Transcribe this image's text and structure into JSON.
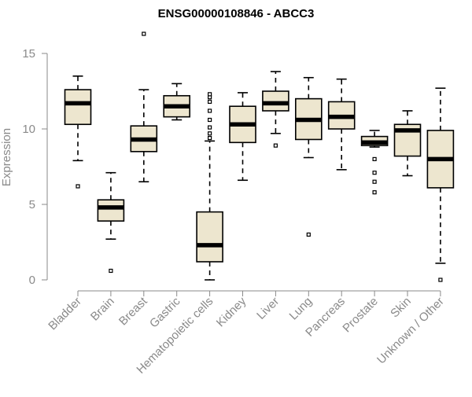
{
  "chart_data": {
    "type": "box",
    "title": "ENSG00000108846 - ABCC3",
    "xlabel": "",
    "ylabel": "Expression",
    "ylim": [
      0,
      15
    ],
    "yticks": [
      0,
      5,
      10,
      15
    ],
    "grid": false,
    "legend": "none",
    "box_fill": "#ede6cf",
    "stroke_color": "#000000",
    "axis_color": "#8a8a8a",
    "categories": [
      "Bladder",
      "Brain",
      "Breast",
      "Gastric",
      "Hematopoietic cells",
      "Kidney",
      "Liver",
      "Lung",
      "Pancreas",
      "Prostate",
      "Skin",
      "Unknown / Other"
    ],
    "boxes": [
      {
        "category": "Bladder",
        "min": 7.9,
        "q1": 10.3,
        "median": 11.7,
        "q3": 12.6,
        "max": 13.5,
        "outliers": [
          6.2
        ]
      },
      {
        "category": "Brain",
        "min": 2.7,
        "q1": 3.9,
        "median": 4.8,
        "q3": 5.3,
        "max": 7.1,
        "outliers": [
          0.6
        ]
      },
      {
        "category": "Breast",
        "min": 6.5,
        "q1": 8.5,
        "median": 9.3,
        "q3": 10.2,
        "max": 12.6,
        "outliers": [
          16.3
        ]
      },
      {
        "category": "Gastric",
        "min": 10.6,
        "q1": 10.8,
        "median": 11.5,
        "q3": 12.2,
        "max": 13.0,
        "outliers": []
      },
      {
        "category": "Hematopoietic cells",
        "min": 0.0,
        "q1": 1.2,
        "median": 2.3,
        "q3": 4.5,
        "max": 9.2,
        "outliers": [
          9.4,
          9.7,
          10.1,
          10.6,
          11.2,
          11.8,
          12.1,
          12.3
        ]
      },
      {
        "category": "Kidney",
        "min": 6.6,
        "q1": 9.1,
        "median": 10.3,
        "q3": 11.5,
        "max": 12.4,
        "outliers": []
      },
      {
        "category": "Liver",
        "min": 9.7,
        "q1": 11.2,
        "median": 11.7,
        "q3": 12.5,
        "max": 13.8,
        "outliers": [
          8.9
        ]
      },
      {
        "category": "Lung",
        "min": 8.1,
        "q1": 9.3,
        "median": 10.6,
        "q3": 12.0,
        "max": 13.4,
        "outliers": [
          3.0
        ]
      },
      {
        "category": "Pancreas",
        "min": 7.3,
        "q1": 10.0,
        "median": 10.8,
        "q3": 11.8,
        "max": 13.3,
        "outliers": []
      },
      {
        "category": "Prostate",
        "min": 8.8,
        "q1": 8.9,
        "median": 9.1,
        "q3": 9.5,
        "max": 9.9,
        "outliers": [
          8.0,
          7.1,
          6.5,
          5.8
        ]
      },
      {
        "category": "Skin",
        "min": 6.9,
        "q1": 8.2,
        "median": 9.9,
        "q3": 10.3,
        "max": 11.2,
        "outliers": []
      },
      {
        "category": "Unknown / Other",
        "min": 1.1,
        "q1": 6.1,
        "median": 8.0,
        "q3": 9.9,
        "max": 12.7,
        "outliers": [
          0.0
        ]
      }
    ]
  }
}
